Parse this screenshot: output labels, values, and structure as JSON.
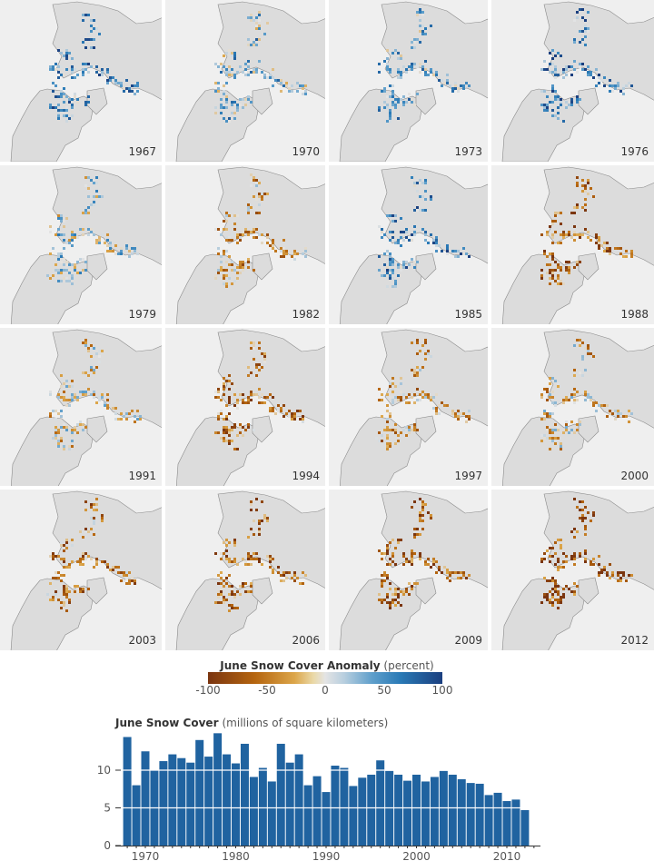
{
  "panels": [
    {
      "year": "1967"
    },
    {
      "year": "1970"
    },
    {
      "year": "1973"
    },
    {
      "year": "1976"
    },
    {
      "year": "1979"
    },
    {
      "year": "1982"
    },
    {
      "year": "1985"
    },
    {
      "year": "1988"
    },
    {
      "year": "1991"
    },
    {
      "year": "1994"
    },
    {
      "year": "1997"
    },
    {
      "year": "2000"
    },
    {
      "year": "2003"
    },
    {
      "year": "2006"
    },
    {
      "year": "2009"
    },
    {
      "year": "2012"
    }
  ],
  "colorbar": {
    "title": "June Snow Cover Anomaly",
    "unit": "(percent)",
    "ticks": [
      "-100",
      "-50",
      "0",
      "50",
      "100"
    ],
    "colors": {
      "min": "#7a3510",
      "mid": "#e4e4e4",
      "max": "#1b3f7f"
    }
  },
  "chart_data": {
    "type": "bar",
    "title": "June Snow Cover",
    "subtitle": "(millions of square kilometers)",
    "xlabel": "",
    "ylabel": "",
    "ylim": [
      0,
      15
    ],
    "yticks": [
      "0",
      "5",
      "10"
    ],
    "xticks": [
      "1970",
      "1980",
      "1990",
      "2000",
      "2010"
    ],
    "color": "#2063a0",
    "grid": "white lines at 5 and 10 across bars",
    "categories": [
      1968,
      1969,
      1970,
      1971,
      1972,
      1973,
      1974,
      1975,
      1976,
      1977,
      1978,
      1979,
      1980,
      1981,
      1982,
      1983,
      1984,
      1985,
      1986,
      1987,
      1988,
      1989,
      1990,
      1991,
      1992,
      1993,
      1994,
      1995,
      1996,
      1997,
      1998,
      1999,
      2000,
      2001,
      2002,
      2003,
      2004,
      2005,
      2006,
      2007,
      2008,
      2009,
      2010,
      2011,
      2012
    ],
    "values": [
      14.4,
      8.0,
      12.5,
      10.0,
      11.2,
      12.1,
      11.6,
      11.0,
      14.0,
      11.8,
      14.9,
      12.1,
      10.9,
      13.5,
      9.1,
      10.3,
      8.5,
      13.5,
      11.0,
      12.1,
      8.0,
      9.2,
      7.1,
      10.6,
      10.3,
      7.9,
      9.0,
      9.4,
      11.3,
      9.9,
      9.4,
      8.6,
      9.4,
      8.5,
      9.1,
      9.9,
      9.4,
      8.8,
      8.3,
      8.2,
      6.7,
      7.0,
      5.9,
      6.1,
      4.7
    ]
  }
}
